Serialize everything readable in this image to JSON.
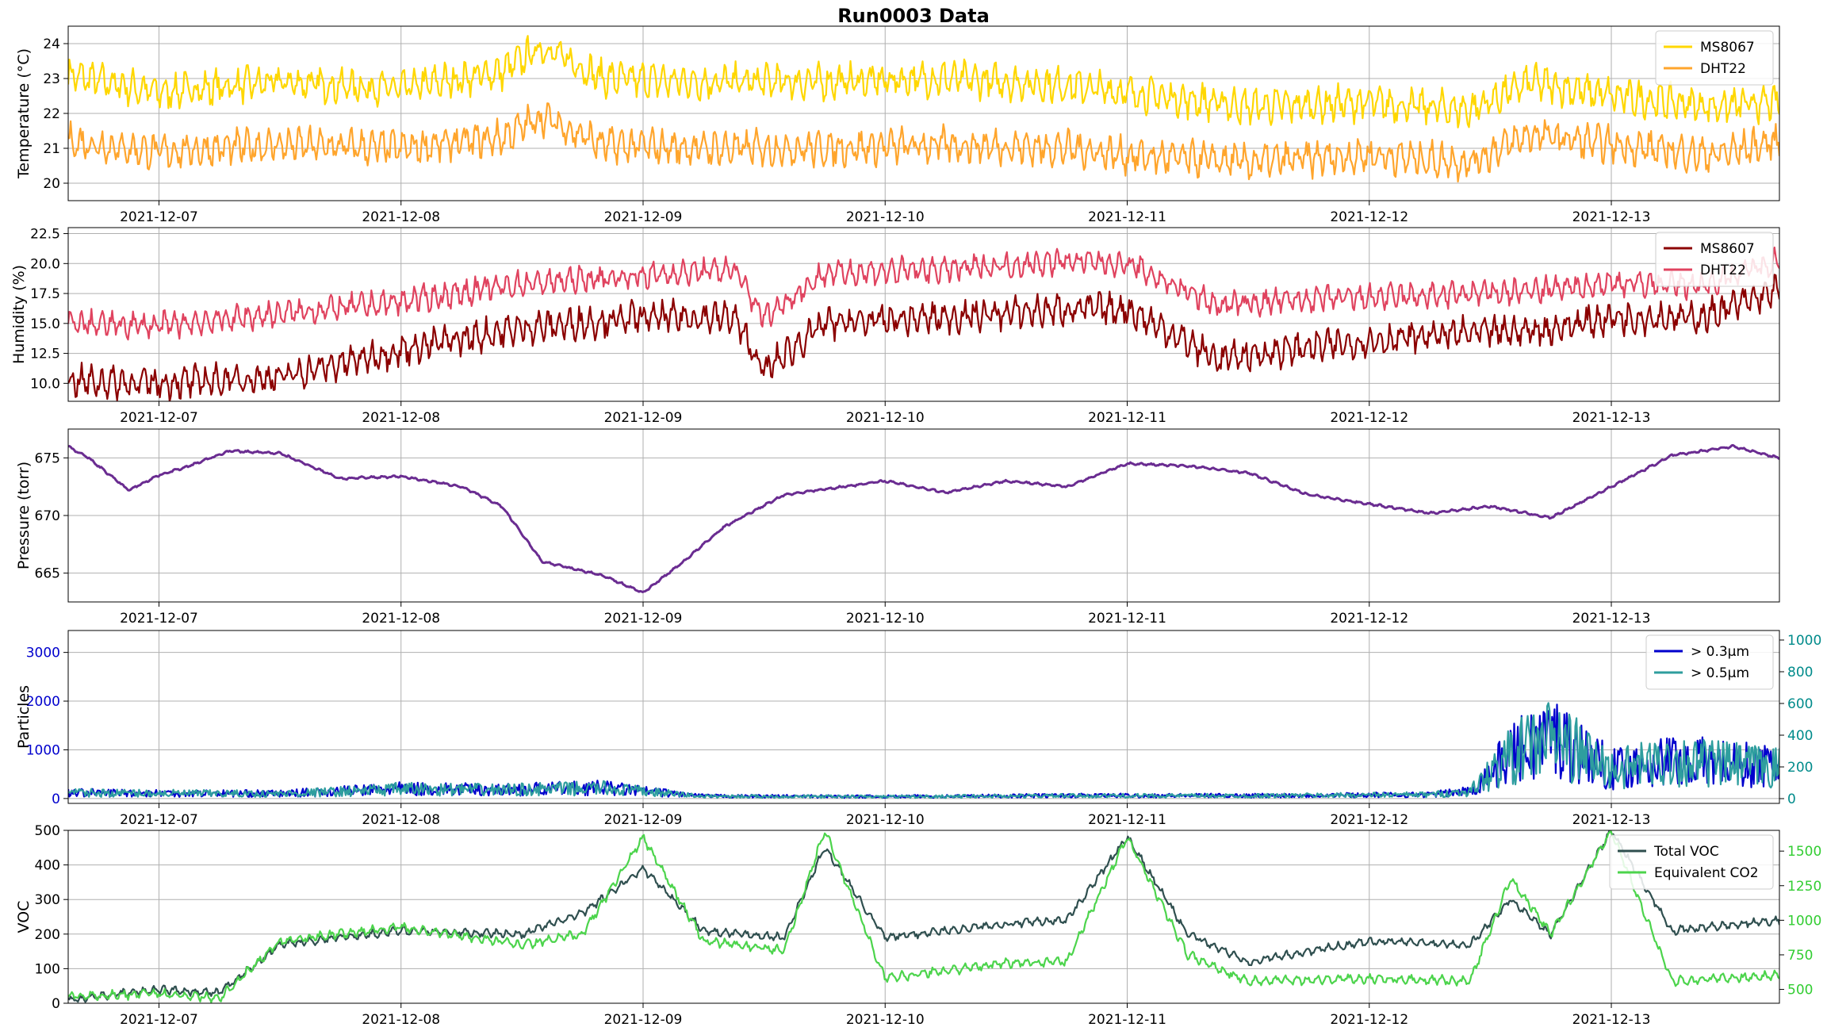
{
  "title": "Run0003 Data",
  "x_tick_labels": [
    "2021-12-07",
    "2021-12-08",
    "2021-12-09",
    "2021-12-10",
    "2021-12-11",
    "2021-12-12",
    "2021-12-13"
  ],
  "chart_data": [
    {
      "type": "line",
      "ylabel": "Temperature (°C)",
      "ylim": [
        19.5,
        24.5
      ],
      "yticks": [
        20,
        21,
        22,
        23,
        24
      ],
      "xlim_days": [
        "2021-12-06 15:00",
        "2021-12-13 16:40"
      ],
      "grid": true,
      "legend": "top-right",
      "series": [
        {
          "name": "MS8067",
          "color": "#FFD700",
          "x": [
            "2021-12-06 15:00",
            "2021-12-07 00:00",
            "2021-12-07 12:00",
            "2021-12-08 00:00",
            "2021-12-08 10:00",
            "2021-12-08 14:00",
            "2021-12-08 20:00",
            "2021-12-09 06:00",
            "2021-12-09 18:00",
            "2021-12-10 06:00",
            "2021-12-10 18:00",
            "2021-12-11 00:00",
            "2021-12-11 12:00",
            "2021-12-12 00:00",
            "2021-12-12 10:00",
            "2021-12-12 16:00",
            "2021-12-13 00:00",
            "2021-12-13 10:00",
            "2021-12-13 16:40"
          ],
          "y": [
            23.1,
            22.6,
            22.9,
            22.7,
            23.2,
            23.9,
            23.0,
            22.9,
            22.9,
            23.0,
            22.8,
            22.6,
            22.2,
            22.3,
            22.1,
            22.9,
            22.5,
            22.2,
            22.3
          ]
        },
        {
          "name": "DHT22",
          "color": "#FFA52C",
          "x": [
            "2021-12-06 15:00",
            "2021-12-07 00:00",
            "2021-12-07 12:00",
            "2021-12-08 00:00",
            "2021-12-08 10:00",
            "2021-12-08 14:00",
            "2021-12-08 20:00",
            "2021-12-09 06:00",
            "2021-12-09 18:00",
            "2021-12-10 06:00",
            "2021-12-10 18:00",
            "2021-12-11 00:00",
            "2021-12-11 12:00",
            "2021-12-12 00:00",
            "2021-12-12 10:00",
            "2021-12-12 16:00",
            "2021-12-13 00:00",
            "2021-12-13 10:00",
            "2021-12-13 16:40"
          ],
          "y": [
            21.2,
            20.9,
            21.1,
            21.0,
            21.3,
            21.9,
            21.1,
            21.0,
            21.0,
            21.1,
            21.0,
            20.8,
            20.6,
            20.8,
            20.6,
            21.4,
            21.1,
            20.8,
            21.2
          ]
        }
      ]
    },
    {
      "type": "line",
      "ylabel": "Humidity (%)",
      "ylim": [
        8.5,
        23
      ],
      "yticks": [
        10.0,
        12.5,
        15.0,
        17.5,
        20.0,
        22.5
      ],
      "ytick_labels": [
        "10.0",
        "12.5",
        "15.0",
        "17.5",
        "20.0",
        "22.5"
      ],
      "grid": true,
      "legend": "top-right",
      "series": [
        {
          "name": "MS8607",
          "color": "#8B0000",
          "x": [
            "2021-12-06 15:00",
            "2021-12-07 00:00",
            "2021-12-07 12:00",
            "2021-12-08 00:00",
            "2021-12-08 12:00",
            "2021-12-09 00:00",
            "2021-12-09 09:00",
            "2021-12-09 12:00",
            "2021-12-09 18:00",
            "2021-12-10 06:00",
            "2021-12-10 18:00",
            "2021-12-11 00:00",
            "2021-12-11 09:00",
            "2021-12-11 18:00",
            "2021-12-12 06:00",
            "2021-12-12 18:00",
            "2021-12-13 00:00",
            "2021-12-13 09:00",
            "2021-12-13 16:40"
          ],
          "y": [
            10.2,
            10.0,
            10.5,
            12.8,
            14.6,
            15.5,
            15.5,
            11.0,
            15.0,
            15.5,
            16.2,
            16.2,
            12.0,
            13.0,
            14.0,
            14.5,
            15.5,
            15.5,
            17.8
          ]
        },
        {
          "name": "DHT22",
          "color": "#E0435F",
          "x": [
            "2021-12-06 15:00",
            "2021-12-07 00:00",
            "2021-12-07 12:00",
            "2021-12-08 00:00",
            "2021-12-08 12:00",
            "2021-12-09 00:00",
            "2021-12-09 09:00",
            "2021-12-09 12:00",
            "2021-12-09 18:00",
            "2021-12-10 06:00",
            "2021-12-10 18:00",
            "2021-12-11 00:00",
            "2021-12-11 09:00",
            "2021-12-11 18:00",
            "2021-12-12 06:00",
            "2021-12-12 18:00",
            "2021-12-13 00:00",
            "2021-12-13 09:00",
            "2021-12-13 16:40"
          ],
          "y": [
            15.0,
            14.8,
            15.8,
            16.8,
            18.3,
            19.0,
            19.5,
            15.5,
            19.2,
            19.5,
            20.2,
            20.0,
            16.5,
            17.0,
            17.3,
            17.8,
            18.4,
            18.2,
            20.3
          ]
        }
      ]
    },
    {
      "type": "line",
      "ylabel": "Pressure (torr)",
      "ylim": [
        662.5,
        677.5
      ],
      "yticks": [
        665,
        670,
        675
      ],
      "grid": true,
      "series": [
        {
          "name": "",
          "color": "#6A2C91",
          "x": [
            "2021-12-06 15:00",
            "2021-12-06 17:00",
            "2021-12-06 21:00",
            "2021-12-07 00:00",
            "2021-12-07 03:00",
            "2021-12-07 07:00",
            "2021-12-07 12:00",
            "2021-12-07 18:00",
            "2021-12-08 00:00",
            "2021-12-08 06:00",
            "2021-12-08 10:00",
            "2021-12-08 14:00",
            "2021-12-08 20:00",
            "2021-12-09 00:00",
            "2021-12-09 04:00",
            "2021-12-09 08:00",
            "2021-12-09 14:00",
            "2021-12-10 00:00",
            "2021-12-10 06:00",
            "2021-12-10 12:00",
            "2021-12-10 18:00",
            "2021-12-11 00:00",
            "2021-12-11 06:00",
            "2021-12-11 12:00",
            "2021-12-11 18:00",
            "2021-12-12 00:00",
            "2021-12-12 06:00",
            "2021-12-12 12:00",
            "2021-12-12 18:00",
            "2021-12-13 00:00",
            "2021-12-13 06:00",
            "2021-12-13 12:00",
            "2021-12-13 16:40"
          ],
          "y": [
            676.0,
            675.0,
            672.2,
            673.5,
            674.3,
            675.6,
            675.4,
            673.2,
            673.4,
            672.5,
            670.8,
            666.0,
            664.8,
            663.3,
            666.0,
            669.0,
            671.8,
            673.0,
            672.0,
            673.0,
            672.5,
            674.5,
            674.3,
            673.7,
            671.8,
            671.0,
            670.2,
            670.8,
            669.8,
            672.5,
            675.2,
            676.0,
            675.0
          ]
        }
      ]
    },
    {
      "type": "line",
      "ylabel": "Particles",
      "ylim": [
        -100,
        3450
      ],
      "yticks": [
        0,
        1000,
        2000,
        3000
      ],
      "y2lim": [
        -30,
        1060
      ],
      "y2ticks": [
        0,
        200,
        400,
        600,
        800,
        1000
      ],
      "grid": true,
      "legend": "top-right",
      "series": [
        {
          "name": "> 0.3μm",
          "color": "#0000CD",
          "axis": "left",
          "x": [
            "2021-12-06 15:00",
            "2021-12-07 12:00",
            "2021-12-08 00:00",
            "2021-12-08 10:00",
            "2021-12-08 20:00",
            "2021-12-09 06:00",
            "2021-12-10 00:00",
            "2021-12-10 18:00",
            "2021-12-11 12:00",
            "2021-12-12 06:00",
            "2021-12-12 10:00",
            "2021-12-12 14:00",
            "2021-12-12 18:00",
            "2021-12-13 00:00",
            "2021-12-13 06:00",
            "2021-12-13 12:00",
            "2021-12-13 16:40"
          ],
          "y": [
            120,
            100,
            200,
            180,
            220,
            50,
            40,
            60,
            60,
            80,
            150,
            900,
            1300,
            600,
            800,
            700,
            650
          ]
        },
        {
          "name": "> 0.5μm",
          "color": "#2E9E9E",
          "axis": "right",
          "x": [
            "2021-12-06 15:00",
            "2021-12-07 12:00",
            "2021-12-08 00:00",
            "2021-12-08 10:00",
            "2021-12-08 20:00",
            "2021-12-09 06:00",
            "2021-12-10 00:00",
            "2021-12-10 18:00",
            "2021-12-11 12:00",
            "2021-12-12 06:00",
            "2021-12-12 10:00",
            "2021-12-12 14:00",
            "2021-12-12 18:00",
            "2021-12-13 00:00",
            "2021-12-13 06:00",
            "2021-12-13 12:00",
            "2021-12-13 16:40"
          ],
          "y": [
            37,
            30,
            60,
            55,
            66,
            15,
            12,
            18,
            18,
            25,
            45,
            270,
            390,
            180,
            240,
            210,
            195
          ]
        }
      ]
    },
    {
      "type": "line",
      "ylabel": "VOC",
      "ylim": [
        0,
        500
      ],
      "yticks": [
        0,
        100,
        200,
        300,
        400,
        500
      ],
      "y2lim": [
        400,
        1650
      ],
      "y2ticks": [
        500,
        750,
        1000,
        1250,
        1500
      ],
      "grid": true,
      "legend": "top-right",
      "series": [
        {
          "name": "Total VOC",
          "color": "#2F4F4F",
          "axis": "left",
          "x": [
            "2021-12-06 15:00",
            "2021-12-07 00:00",
            "2021-12-07 06:00",
            "2021-12-07 12:00",
            "2021-12-08 00:00",
            "2021-12-08 12:00",
            "2021-12-08 18:00",
            "2021-12-09 00:00",
            "2021-12-09 06:00",
            "2021-12-09 14:00",
            "2021-12-09 18:00",
            "2021-12-10 00:00",
            "2021-12-10 12:00",
            "2021-12-10 18:00",
            "2021-12-11 00:00",
            "2021-12-11 06:00",
            "2021-12-11 12:00",
            "2021-12-12 00:00",
            "2021-12-12 10:00",
            "2021-12-12 14:00",
            "2021-12-12 18:00",
            "2021-12-13 00:00",
            "2021-12-13 06:00",
            "2021-12-13 16:40"
          ],
          "y": [
            10,
            40,
            30,
            170,
            210,
            200,
            260,
            390,
            210,
            190,
            450,
            190,
            230,
            240,
            480,
            200,
            120,
            180,
            170,
            300,
            200,
            500,
            210,
            240
          ]
        },
        {
          "name": "Equivalent CO2",
          "color": "#4CD44C",
          "axis": "right",
          "x": [
            "2021-12-06 15:00",
            "2021-12-07 00:00",
            "2021-12-07 06:00",
            "2021-12-07 12:00",
            "2021-12-08 00:00",
            "2021-12-08 12:00",
            "2021-12-08 18:00",
            "2021-12-09 00:00",
            "2021-12-09 06:00",
            "2021-12-09 14:00",
            "2021-12-09 18:00",
            "2021-12-10 00:00",
            "2021-12-10 12:00",
            "2021-12-10 18:00",
            "2021-12-11 00:00",
            "2021-12-11 06:00",
            "2021-12-11 12:00",
            "2021-12-12 00:00",
            "2021-12-12 10:00",
            "2021-12-12 14:00",
            "2021-12-12 18:00",
            "2021-12-13 00:00",
            "2021-12-13 06:00",
            "2021-12-13 16:40"
          ],
          "y": [
            450,
            470,
            440,
            850,
            950,
            820,
            900,
            1600,
            850,
            780,
            1650,
            580,
            690,
            700,
            1600,
            750,
            560,
            580,
            560,
            1300,
            900,
            1650,
            560,
            600
          ]
        }
      ]
    }
  ]
}
